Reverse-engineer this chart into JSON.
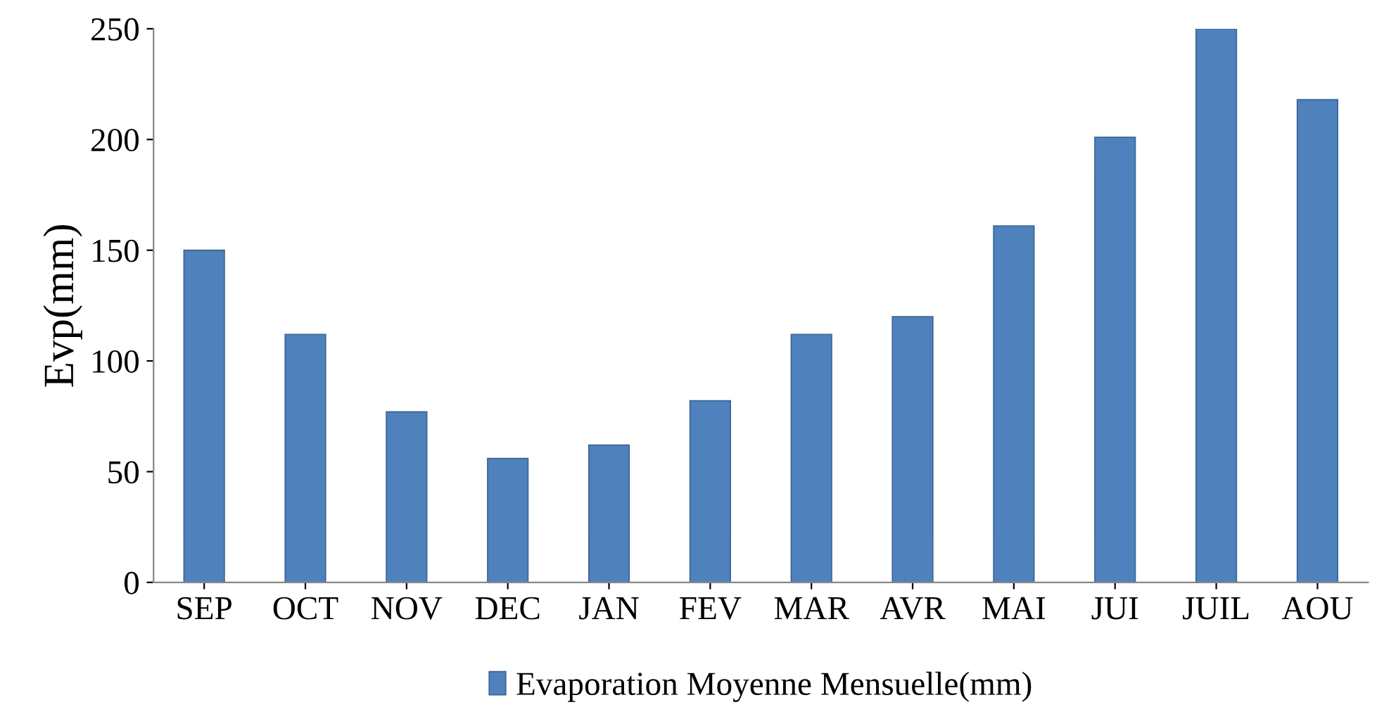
{
  "chart_data": {
    "type": "bar",
    "ylabel": "Evp(mm)",
    "categories": [
      "SEP",
      "OCT",
      "NOV",
      "DEC",
      "JAN",
      "FEV",
      "MAR",
      "AVR",
      "MAI",
      "JUI",
      "JUIL",
      "AOU"
    ],
    "series": [
      {
        "name": "Evaporation Moyenne Mensuelle(mm)",
        "color": "#4f81bd",
        "values": [
          150,
          112,
          77,
          56,
          62,
          82,
          112,
          120,
          161,
          201,
          250,
          218
        ]
      }
    ],
    "ylim": [
      0,
      250
    ],
    "yticks": [
      0,
      50,
      100,
      150,
      200,
      250
    ],
    "grid": false,
    "legend": "bottom"
  }
}
